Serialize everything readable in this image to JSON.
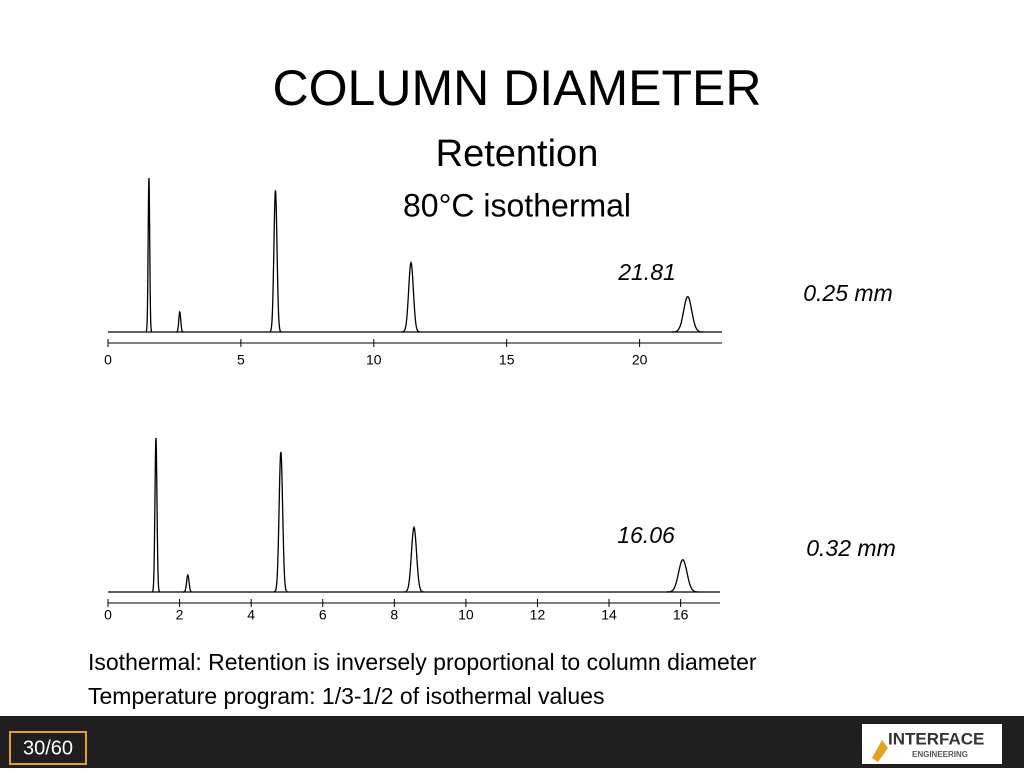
{
  "title": "COLUMN DIAMETER",
  "subtitle": "Retention",
  "condition": "80°C isothermal",
  "chart_data": [
    {
      "type": "chromatogram",
      "xlim": [
        0,
        23.1
      ],
      "xticks": [
        0,
        5,
        10,
        15,
        20
      ],
      "ylim": [
        0,
        100
      ],
      "x": [
        1.54,
        2.7,
        6.3,
        11.4,
        21.81
      ],
      "values": [
        100,
        13,
        92,
        45,
        23
      ],
      "annotation": "21.81",
      "label": "0.25 mm"
    },
    {
      "type": "chromatogram",
      "xlim": [
        0,
        17.1
      ],
      "xticks": [
        0,
        2,
        4,
        6,
        8,
        10,
        12,
        14,
        16
      ],
      "ylim": [
        0,
        100
      ],
      "x": [
        1.34,
        2.23,
        4.83,
        8.55,
        16.06
      ],
      "values": [
        100,
        11,
        91,
        42,
        21
      ],
      "annotation": "16.06",
      "label": "0.32 mm"
    }
  ],
  "notes": [
    "Isothermal: Retention is inversely proportional to column diameter",
    "Temperature program: 1/3-1/2 of isothermal values"
  ],
  "footer": {
    "page": "30/60",
    "logo": "INTERFACE",
    "logo_sub": "ENGINEERING"
  }
}
